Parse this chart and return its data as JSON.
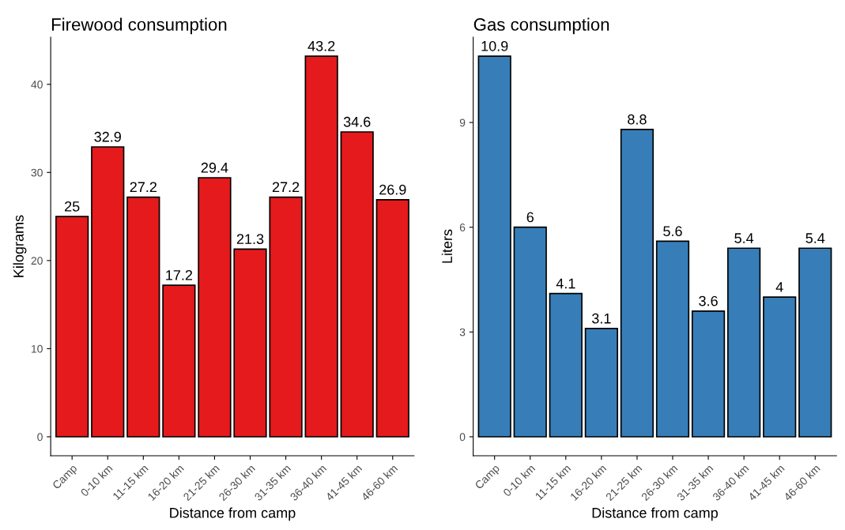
{
  "chart_data": [
    {
      "type": "bar",
      "title": "Firewood consumption",
      "xlabel": "Distance from camp",
      "ylabel": "Kilograms",
      "categories": [
        "Camp",
        "0-10 km",
        "11-15 km",
        "16-20 km",
        "21-25 km",
        "26-30 km",
        "31-35 km",
        "36-40 km",
        "41-45 km",
        "46-60 km"
      ],
      "values": [
        25,
        32.9,
        27.2,
        17.2,
        29.4,
        21.3,
        27.2,
        43.2,
        34.6,
        26.9
      ],
      "color": "#e41a1c",
      "ylim": [
        -2.16,
        45.36
      ],
      "yticks": [
        0,
        10,
        20,
        30,
        40
      ],
      "data_labels": true,
      "grid": false,
      "legend": false
    },
    {
      "type": "bar",
      "title": "Gas consumption",
      "xlabel": "Distance from camp",
      "ylabel": "Liters",
      "categories": [
        "Camp",
        "0-10 km",
        "11-15 km",
        "16-20 km",
        "21-25 km",
        "26-30 km",
        "31-35 km",
        "36-40 km",
        "41-45 km",
        "46-60 km"
      ],
      "values": [
        10.9,
        6,
        4.1,
        3.1,
        8.8,
        5.6,
        3.6,
        5.4,
        4,
        5.4
      ],
      "color": "#377eb8",
      "ylim": [
        -0.545,
        11.445
      ],
      "yticks": [
        0,
        3,
        6,
        9
      ],
      "data_labels": true,
      "grid": false,
      "legend": false
    }
  ]
}
